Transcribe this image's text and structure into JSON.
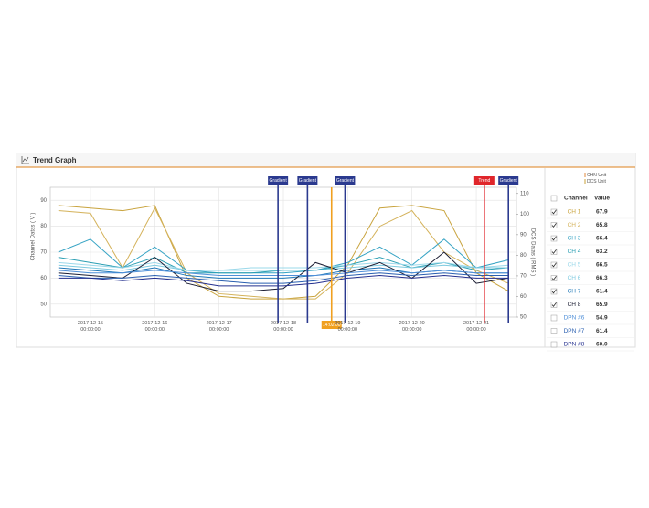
{
  "header": {
    "title": "Trend Graph"
  },
  "chart_data": {
    "type": "line",
    "y_label": "Channel Datas ( V )",
    "y2_label": "DCS Datas ( RMS )",
    "unit_legend": [
      {
        "label": "CHN Unit",
        "color": "#e08a3c"
      },
      {
        "label": "DCS Unit",
        "color": "#c9a13a"
      }
    ],
    "xlim": [
      "2017-12-14 09:00:00",
      "2017-12-21 15:00:00"
    ],
    "xticks": [
      "2017-12-15 00:00:00",
      "2017-12-16 00:00:00",
      "2017-12-17 00:00:00",
      "2017-12-18 00:00:00",
      "2017-12-19 00:00:00",
      "2017-12-20 00:00:00",
      "2017-12-21 00:00:00"
    ],
    "x": [
      "2017-12-14 12:00:00",
      "2017-12-15 00:00:00",
      "2017-12-15 12:00:00",
      "2017-12-16 00:00:00",
      "2017-12-16 12:00:00",
      "2017-12-17 00:00:00",
      "2017-12-17 12:00:00",
      "2017-12-18 00:00:00",
      "2017-12-18 12:00:00",
      "2017-12-19 00:00:00",
      "2017-12-19 12:00:00",
      "2017-12-20 00:00:00",
      "2017-12-20 12:00:00",
      "2017-12-21 00:00:00",
      "2017-12-21 12:00:00"
    ],
    "ylim": [
      45,
      95
    ],
    "yticks": [
      50,
      60,
      70,
      80,
      90
    ],
    "y2lim": [
      50,
      113
    ],
    "y2ticks": [
      50,
      60,
      70,
      80,
      90,
      100,
      110
    ],
    "grid": true,
    "cursors": [
      {
        "label": "Gradient",
        "x": "2017-12-17 22:00:00",
        "color": "#2b3a8f",
        "position": "top"
      },
      {
        "label": "Gradient",
        "x": "2017-12-18 09:00:00",
        "color": "#2b3a8f",
        "position": "top"
      },
      {
        "label": "14:02:00",
        "x": "2017-12-18 18:00:00",
        "color": "#f0a020",
        "position": "bottom"
      },
      {
        "label": "Gradient",
        "x": "2017-12-18 23:00:00",
        "color": "#2b3a8f",
        "position": "top"
      },
      {
        "label": "Trend",
        "x": "2017-12-21 03:00:00",
        "color": "#e0262b",
        "position": "top"
      },
      {
        "label": "Gradient",
        "x": "2017-12-21 12:00:00",
        "color": "#2b3a8f",
        "position": "top"
      }
    ],
    "series": [
      {
        "name": "CH 1",
        "color": "#c9a43f",
        "checked": true,
        "current": "67.9",
        "values": [
          88,
          87,
          86,
          88,
          60,
          53,
          52,
          52,
          53,
          65,
          87,
          88,
          86,
          62,
          55
        ]
      },
      {
        "name": "CH 2",
        "color": "#d4b25a",
        "checked": true,
        "current": "65.8",
        "values": [
          86,
          85,
          64,
          87,
          62,
          54,
          53,
          52,
          52,
          62,
          80,
          86,
          70,
          63,
          58
        ]
      },
      {
        "name": "CH 3",
        "color": "#35a3c4",
        "checked": true,
        "current": "66.4",
        "values": [
          70,
          75,
          64,
          72,
          63,
          62,
          62,
          62,
          63,
          66,
          72,
          65,
          75,
          64,
          67
        ]
      },
      {
        "name": "CH 4",
        "color": "#2b9fb3",
        "checked": true,
        "current": "63.2",
        "values": [
          68,
          66,
          64,
          68,
          62,
          62,
          62,
          63,
          63,
          65,
          68,
          64,
          66,
          63,
          64
        ]
      },
      {
        "name": "CH 5",
        "color": "#9ad8ea",
        "checked": true,
        "current": "66.5",
        "values": [
          66,
          65,
          64,
          66,
          63,
          63,
          64,
          64,
          64,
          65,
          66,
          65,
          66,
          64,
          65
        ]
      },
      {
        "name": "CH 6",
        "color": "#7fcbe0",
        "checked": true,
        "current": "66.3",
        "values": [
          65,
          64,
          63,
          65,
          63,
          63,
          63,
          63,
          63,
          64,
          65,
          64,
          65,
          64,
          64
        ]
      },
      {
        "name": "CH 7",
        "color": "#1f78b8",
        "checked": true,
        "current": "61.4",
        "values": [
          64,
          63,
          62,
          64,
          61,
          60,
          60,
          60,
          61,
          63,
          64,
          62,
          63,
          62,
          62
        ]
      },
      {
        "name": "CH 8",
        "color": "#1b1d33",
        "checked": true,
        "current": "65.9",
        "values": [
          62,
          61,
          60,
          68,
          58,
          55,
          55,
          56,
          66,
          62,
          66,
          60,
          70,
          58,
          60
        ]
      },
      {
        "name": "DPN #6",
        "color": "#4f8fd8",
        "checked": false,
        "current": "54.9",
        "values": [
          63,
          62,
          62,
          63,
          62,
          61,
          61,
          61,
          61,
          62,
          63,
          62,
          63,
          62,
          62
        ]
      },
      {
        "name": "DPN #7",
        "color": "#2a5fb0",
        "checked": false,
        "current": "61.4",
        "values": [
          61,
          60,
          60,
          61,
          60,
          59,
          58,
          58,
          59,
          61,
          62,
          61,
          62,
          61,
          61
        ]
      },
      {
        "name": "DPN #8",
        "color": "#24308f",
        "checked": false,
        "current": "60.0",
        "values": [
          60,
          60,
          59,
          60,
          59,
          57,
          57,
          57,
          58,
          60,
          61,
          60,
          61,
          60,
          60
        ]
      }
    ]
  },
  "table": {
    "headers": [
      "Channel",
      "Value"
    ]
  }
}
